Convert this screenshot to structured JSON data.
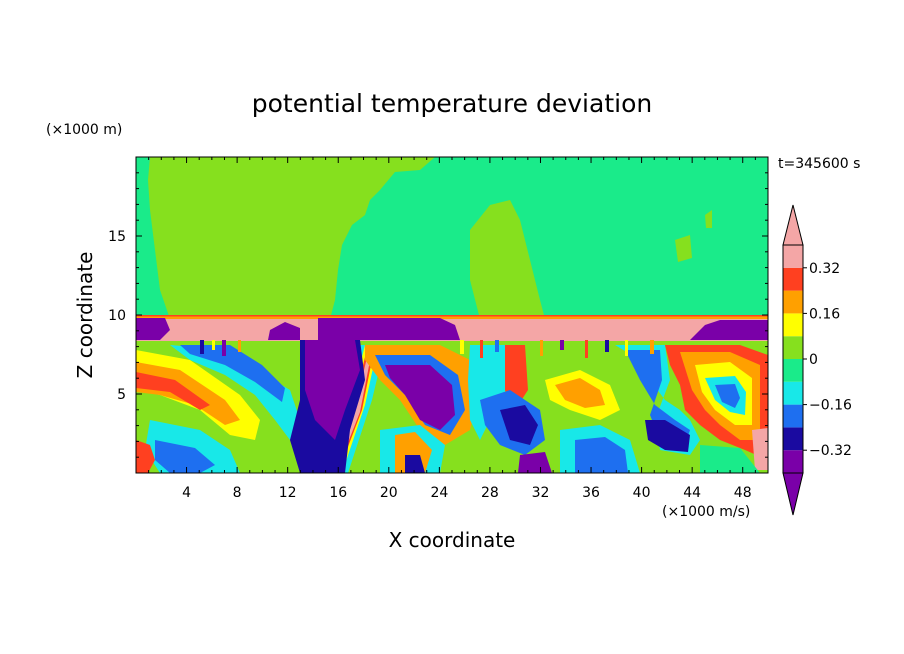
{
  "chart_data": {
    "type": "heatmap",
    "title": "potential temperature deviation",
    "xlabel": "X coordinate",
    "ylabel": "Z coordinate",
    "x_units": "(×1000 m/s)",
    "y_units": "(×1000 m)",
    "time_label": "t=345600 s",
    "xlim": [
      0,
      50
    ],
    "ylim": [
      0,
      20
    ],
    "x_ticks": [
      "4",
      "8",
      "12",
      "16",
      "20",
      "24",
      "28",
      "32",
      "36",
      "40",
      "44",
      "48"
    ],
    "x_tick_values": [
      4,
      8,
      12,
      16,
      20,
      24,
      28,
      32,
      36,
      40,
      44,
      48
    ],
    "y_ticks": [
      "5",
      "10",
      "15"
    ],
    "y_tick_values": [
      5,
      10,
      15
    ],
    "colorbar": {
      "colors": [
        "#7a00a8",
        "#1a0aa0",
        "#1e6ff0",
        "#18e8e8",
        "#1aeb8a",
        "#86e01e",
        "#ffff00",
        "#ffa000",
        "#ff4020",
        "#f4a6a6"
      ],
      "tick_labels": [
        "0.32",
        "0.16",
        "0",
        "-0.16",
        "-0.32"
      ],
      "tick_labels_display": [
        "0.32",
        "0.16",
        "0",
        "−0.16",
        "−0.32"
      ],
      "tick_values": [
        0.32,
        0.16,
        0,
        -0.16,
        -0.32
      ],
      "interval": 0.08,
      "extend": "both"
    },
    "layers": {
      "upper_background": "#1aeb8a",
      "upper_patches": "#86e01e",
      "inversion_band_z": [
        8.3,
        9.9
      ],
      "inversion_top_z": 9.9,
      "lower_background": "#86e01e"
    }
  },
  "colors": {
    "purple": "#7a00a8",
    "navy": "#1a0aa0",
    "blue": "#1e6ff0",
    "cyan": "#18e8e8",
    "green": "#1aeb8a",
    "lime": "#86e01e",
    "yellow": "#ffff00",
    "orange": "#ffa000",
    "red": "#ff4020",
    "pink": "#f4a6a6"
  }
}
